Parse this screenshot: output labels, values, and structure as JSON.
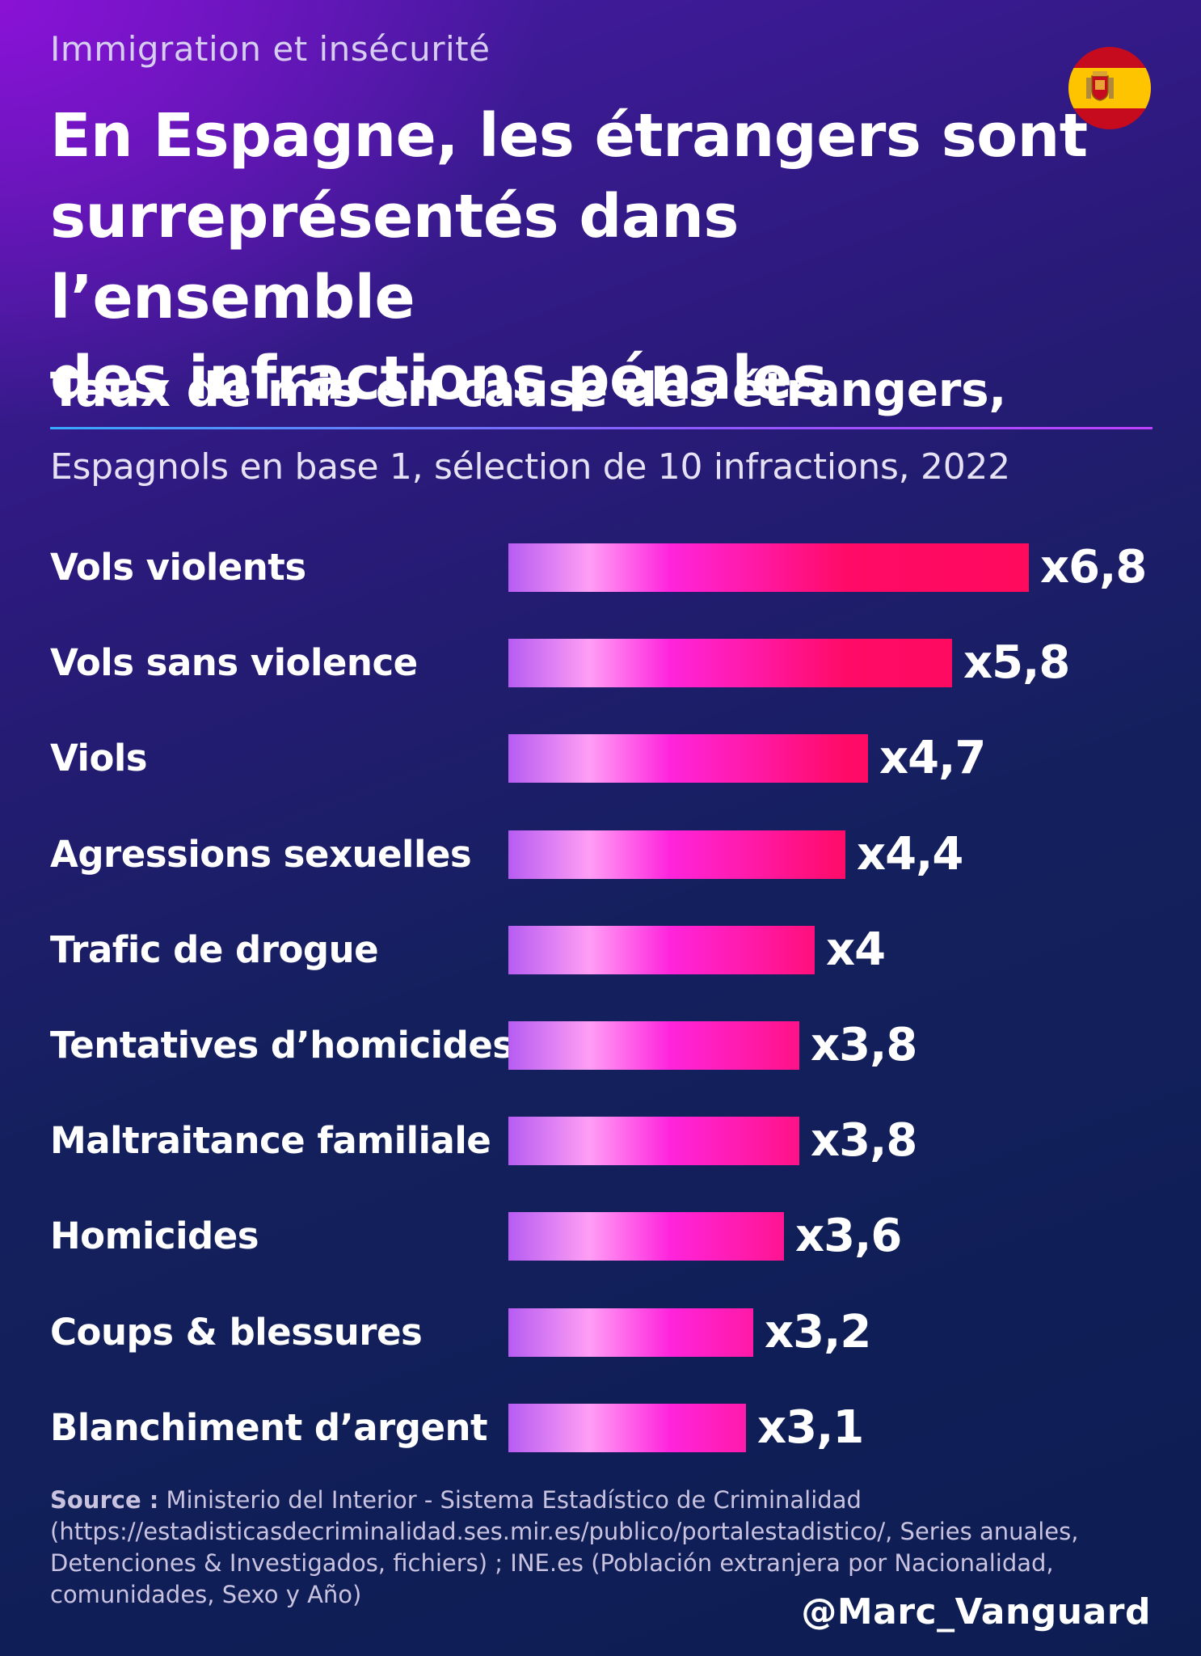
{
  "header": {
    "kicker": "Immigration et insécurité",
    "title_lines": [
      "En Espagne, les étrangers sont",
      "surreprésentés dans l’ensemble",
      "des infractions pénales"
    ],
    "flag_icon": "spain-flag-icon"
  },
  "chart_data": {
    "type": "bar",
    "orientation": "horizontal",
    "title": "Taux de mis en cause des étrangers,",
    "subtitle": "Espagnols en base 1, sélection de 10 infractions, 2022",
    "categories": [
      "Vols violents",
      "Vols sans violence",
      "Viols",
      "Agressions sexuelles",
      "Trafic de drogue",
      "Tentatives d’homicides",
      "Maltraitance familiale",
      "Homicides",
      "Coups & blessures",
      "Blanchiment d’argent"
    ],
    "values": [
      6.8,
      5.8,
      4.7,
      4.4,
      4.0,
      3.8,
      3.8,
      3.6,
      3.2,
      3.1
    ],
    "value_labels": [
      "x6,8",
      "x5,8",
      "x4,7",
      "x4,4",
      "x4",
      "x3,8",
      "x3,8",
      "x3,6",
      "x3,2",
      "x3,1"
    ],
    "xlim": [
      0,
      6.8
    ],
    "grid": false,
    "colors": {
      "bar_gradient": [
        "#b65cf2",
        "#ff9ef5",
        "#ff24dc",
        "#ff0a5a"
      ],
      "text": "#ffffff"
    }
  },
  "footer": {
    "source_label": "Source :",
    "source_text": "Ministerio del Interior - Sistema Estadístico de Criminalidad (https://estadisticasdecriminalidad.ses.mir.es/publico/portalestadistico/, Series anuales, Detenciones & Investigados, fichiers) ; INE.es (Población extranjera por Nacionalidad, comunidades, Sexo y Año)",
    "handle": "@Marc_Vanguard"
  }
}
